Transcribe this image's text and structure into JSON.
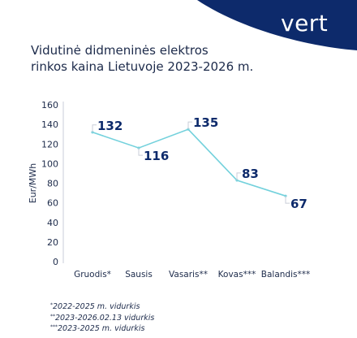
{
  "brand": {
    "logo_text": "vert",
    "accent_color": "#0d2a6b",
    "line_color": "#73d1dc"
  },
  "chart_data": {
    "type": "line",
    "title": "Vidutinė didmeninės elektros rinkos kaina Lietuvoje 2023-2026 m.",
    "title_lines": [
      "Vidutinė didmeninės elektros",
      "rinkos kaina Lietuvoje 2023-2026 m."
    ],
    "xlabel": "",
    "ylabel": "Eur/MWh",
    "categories": [
      "Gruodis*",
      "Sausis",
      "Vasaris**",
      "Kovas***",
      "Balandis***"
    ],
    "values": [
      132,
      116,
      135,
      83,
      67
    ],
    "data_labels": [
      "132",
      "116",
      "135",
      "83",
      "67"
    ],
    "ylim": [
      0,
      160
    ],
    "yticks": [
      0,
      20,
      40,
      60,
      80,
      100,
      120,
      140,
      160
    ],
    "grid": false
  },
  "notes": [
    {
      "mark": "*",
      "text": "2022-2025 m. vidurkis"
    },
    {
      "mark": "**",
      "text": "2023-2026.02.13 vidurkis"
    },
    {
      "mark": "***",
      "text": "2023-2025 m. vidurkis"
    }
  ]
}
